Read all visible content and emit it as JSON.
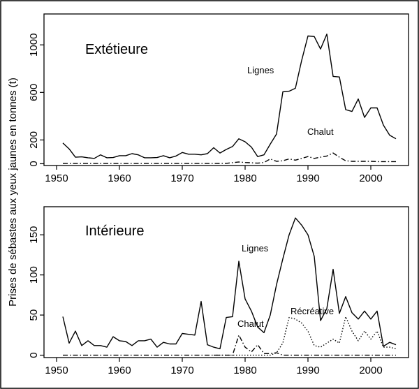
{
  "ylabel": "Prises de sébastes aux yeux jaunes en tonnes (t)",
  "chart_data": [
    {
      "type": "line",
      "title": "Extétieure",
      "xlabel": "",
      "ylabel": "Prises de sébastes aux yeux jaunes en tonnes (t)",
      "xlim": [
        1948,
        2006
      ],
      "ylim": [
        -15,
        1260
      ],
      "xticks": [
        1950,
        1960,
        1970,
        1980,
        1990,
        2000
      ],
      "yticks": [
        0,
        200,
        600,
        1000
      ],
      "ytick_labels": [
        "0",
        "200",
        "600",
        "1000"
      ],
      "series": [
        {
          "name": "Lignes",
          "style": "solid",
          "label": "Lignes",
          "x": [
            1951,
            1952,
            1953,
            1954,
            1955,
            1956,
            1957,
            1958,
            1959,
            1960,
            1961,
            1962,
            1963,
            1964,
            1965,
            1966,
            1967,
            1968,
            1969,
            1970,
            1971,
            1972,
            1973,
            1974,
            1975,
            1976,
            1977,
            1978,
            1979,
            1980,
            1981,
            1982,
            1983,
            1984,
            1985,
            1986,
            1987,
            1988,
            1989,
            1990,
            1991,
            1992,
            1993,
            1994,
            1995,
            1996,
            1997,
            1998,
            1999,
            2000,
            2001,
            2002,
            2003,
            2004
          ],
          "y": [
            175,
            125,
            55,
            58,
            50,
            45,
            75,
            50,
            52,
            68,
            68,
            85,
            75,
            50,
            50,
            52,
            68,
            50,
            65,
            95,
            80,
            80,
            75,
            85,
            135,
            90,
            120,
            145,
            210,
            185,
            140,
            60,
            75,
            165,
            250,
            605,
            610,
            635,
            870,
            1075,
            1070,
            965,
            1090,
            735,
            730,
            455,
            440,
            545,
            390,
            470,
            470,
            325,
            240,
            210
          ]
        },
        {
          "name": "Chalut",
          "style": "dashdot",
          "label": "Chalut",
          "x": [
            1951,
            1955,
            1960,
            1965,
            1970,
            1975,
            1977,
            1979,
            1980,
            1981,
            1982,
            1983,
            1984,
            1985,
            1986,
            1987,
            1988,
            1989,
            1990,
            1991,
            1992,
            1993,
            1994,
            1995,
            1996,
            1997,
            1998,
            1999,
            2000,
            2001,
            2002,
            2003,
            2004
          ],
          "y": [
            2,
            2,
            2,
            2,
            2,
            2,
            3,
            15,
            10,
            8,
            5,
            10,
            40,
            20,
            25,
            40,
            30,
            45,
            60,
            45,
            55,
            65,
            90,
            55,
            25,
            20,
            20,
            20,
            20,
            18,
            18,
            18,
            18
          ]
        }
      ]
    },
    {
      "type": "line",
      "title": "Intérieure",
      "xlabel": "",
      "ylabel": "Prises de sébastes aux yeux jaunes en tonnes (t)",
      "xlim": [
        1948,
        2006
      ],
      "ylim": [
        -3,
        185
      ],
      "xticks": [
        1950,
        1960,
        1970,
        1980,
        1990,
        2000
      ],
      "yticks": [
        0,
        50,
        100,
        150
      ],
      "ytick_labels": [
        "0",
        "50",
        "100",
        "150"
      ],
      "series": [
        {
          "name": "Lignes",
          "style": "solid",
          "label": "Lignes",
          "x": [
            1951,
            1952,
            1953,
            1954,
            1955,
            1956,
            1957,
            1958,
            1959,
            1960,
            1961,
            1962,
            1963,
            1964,
            1965,
            1966,
            1967,
            1968,
            1969,
            1970,
            1971,
            1972,
            1973,
            1974,
            1975,
            1976,
            1977,
            1978,
            1979,
            1980,
            1981,
            1982,
            1983,
            1984,
            1985,
            1986,
            1987,
            1988,
            1989,
            1990,
            1991,
            1992,
            1993,
            1994,
            1995,
            1996,
            1997,
            1998,
            1999,
            2000,
            2001,
            2002,
            2003,
            2004
          ],
          "y": [
            48,
            15,
            30,
            12,
            18,
            12,
            12,
            10,
            23,
            18,
            17,
            12,
            18,
            18,
            20,
            10,
            16,
            14,
            14,
            27,
            26,
            25,
            67,
            13,
            10,
            8,
            47,
            48,
            117,
            70,
            55,
            35,
            28,
            50,
            88,
            120,
            150,
            171,
            162,
            150,
            123,
            43,
            58,
            107,
            52,
            73,
            53,
            45,
            55,
            45,
            55,
            11,
            16,
            13
          ]
        },
        {
          "name": "Chalut",
          "style": "dashdot",
          "label": "Chalut",
          "x": [
            1951,
            1955,
            1960,
            1965,
            1970,
            1975,
            1978,
            1979,
            1980,
            1981,
            1982,
            1983,
            1984,
            1985,
            1986,
            1987,
            1990,
            1995,
            2000,
            2002,
            2003,
            2004
          ],
          "y": [
            0,
            0,
            0,
            0,
            0,
            0,
            0,
            25,
            10,
            4,
            13,
            2,
            2,
            3,
            0,
            0,
            0,
            0,
            0,
            0,
            0,
            0
          ]
        },
        {
          "name": "Récréative",
          "style": "dotted",
          "label": "Récréative",
          "x": [
            1975,
            1980,
            1984,
            1985,
            1986,
            1987,
            1988,
            1989,
            1990,
            1991,
            1992,
            1993,
            1994,
            1995,
            1996,
            1997,
            1998,
            1999,
            2000,
            2001,
            2002,
            2003,
            2004
          ],
          "y": [
            0,
            0,
            0,
            3,
            15,
            47,
            45,
            40,
            30,
            12,
            10,
            15,
            20,
            15,
            48,
            30,
            18,
            30,
            20,
            30,
            10,
            10,
            8
          ]
        }
      ]
    }
  ]
}
